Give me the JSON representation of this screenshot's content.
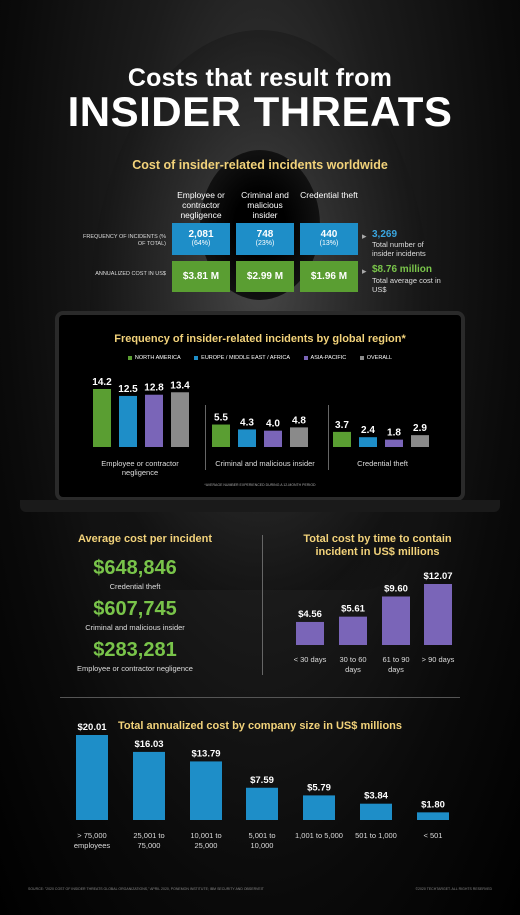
{
  "header": {
    "title_line1": "Costs that result from",
    "title_line2": "INSIDER THREATS"
  },
  "colors": {
    "north_america": "#5a9e32",
    "emea": "#1e8ec8",
    "asia_pacific": "#7a65b8",
    "overall": "#8a8a8a",
    "blue_cell": "#1e8ec8",
    "green_cell": "#5a9e32",
    "heading": "#f2d27a",
    "highlight_green": "#79c44a"
  },
  "worldwide": {
    "title": "Cost of insider-related incidents worldwide",
    "columns": [
      "Employee or contractor negligence",
      "Criminal and malicious insider",
      "Credential theft"
    ],
    "row_frequency_label": "FREQUENCY OF INCIDENTS (% OF TOTAL)",
    "row_cost_label": "ANNUALIZED COST IN US$",
    "frequency": [
      {
        "value": "2,081",
        "pct": "(64%)"
      },
      {
        "value": "748",
        "pct": "(23%)"
      },
      {
        "value": "440",
        "pct": "(13%)"
      }
    ],
    "cost": [
      "$3.81 M",
      "$2.99 M",
      "$1.96 M"
    ],
    "total_incidents_value": "3,269",
    "total_incidents_label": "Total number of insider incidents",
    "total_cost_value": "$8.76 million",
    "total_cost_label": "Total average cost in US$"
  },
  "chart_data": [
    {
      "type": "bar",
      "title": "Frequency of insider-related incidents by global region*",
      "categories": [
        "Employee or contractor negligence",
        "Criminal and malicious insider",
        "Credential theft"
      ],
      "series": [
        {
          "name": "NORTH AMERICA",
          "values": [
            14.2,
            5.5,
            3.7
          ]
        },
        {
          "name": "EUROPE / MIDDLE EAST / AFRICA",
          "values": [
            12.5,
            4.3,
            2.4
          ]
        },
        {
          "name": "ASIA-PACIFIC",
          "values": [
            12.8,
            4.0,
            1.8
          ]
        },
        {
          "name": "OVERALL",
          "values": [
            13.4,
            4.8,
            2.9
          ]
        }
      ],
      "value_labels": [
        [
          "14.2",
          "12.5",
          "12.8",
          "13.4"
        ],
        [
          "5.5",
          "4.3",
          "4.0",
          "4.8"
        ],
        [
          "3.7",
          "2.4",
          "1.8",
          "2.9"
        ]
      ],
      "legend_position": "top",
      "footnote": "*AVERAGE NUMBER EXPERIENCED DURING A 12-MONTH PERIOD",
      "ylim": [
        0,
        16
      ]
    },
    {
      "type": "bar",
      "title": "Total cost by time to contain incident in US$ millions",
      "categories": [
        "< 30 days",
        "30 to 60 days",
        "61 to 90 days",
        "> 90 days"
      ],
      "values": [
        4.56,
        5.61,
        9.6,
        12.07
      ],
      "value_labels": [
        "$4.56",
        "$5.61",
        "$9.60",
        "$12.07"
      ],
      "ylim": [
        0,
        13
      ]
    },
    {
      "type": "bar",
      "title": "Total annualized cost by company size in US$ millions",
      "categories": [
        "> 75,000 employees",
        "25,001 to 75,000",
        "10,001 to 25,000",
        "5,001 to 10,000",
        "1,001 to 5,000",
        "501 to 1,000",
        "< 501"
      ],
      "values": [
        20.01,
        16.03,
        13.79,
        7.59,
        5.79,
        3.84,
        1.8
      ],
      "value_labels": [
        "$20.01",
        "$16.03",
        "$13.79",
        "$7.59",
        "$5.79",
        "$3.84",
        "$1.80"
      ],
      "ylim": [
        0,
        21
      ]
    }
  ],
  "average_cost": {
    "title": "Average cost per incident",
    "items": [
      {
        "value": "$648,846",
        "label": "Credential theft"
      },
      {
        "value": "$607,745",
        "label": "Criminal and malicious insider"
      },
      {
        "value": "$283,281",
        "label": "Employee or contractor negligence"
      }
    ]
  },
  "footer": {
    "source": "SOURCE: \"2020 COST OF INSIDER THREATS GLOBAL ORGANIZATIONS,\" APRIL 2020, PONEMON INSTITUTE; IBM SECURITY AND OBSERVEIT",
    "copyright": "©2020 TECHTARGET. ALL RIGHTS RESERVED"
  }
}
